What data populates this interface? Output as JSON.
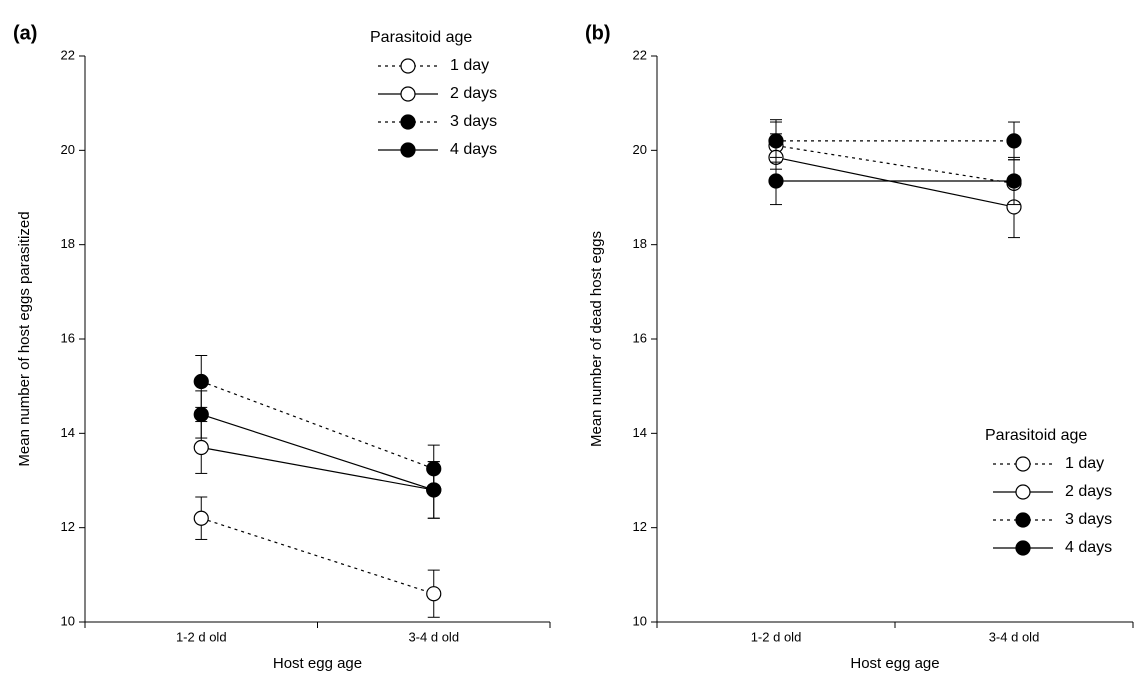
{
  "chart_data": [
    {
      "type": "line",
      "label": "(a)",
      "y_label": "Mean number of host eggs parasitized",
      "x_label": "Host egg age",
      "categories": [
        "1-2 d old",
        "3-4 d old"
      ],
      "ylim": [
        10,
        22
      ],
      "yticks": [
        10,
        12,
        14,
        16,
        18,
        20,
        22
      ],
      "legend_title": "Parasitoid age",
      "legend": "upper center",
      "series": [
        {
          "name": "1 day",
          "color": "#000000",
          "dash": "dotted",
          "marker_fill": "open",
          "values": [
            12.2,
            10.6
          ],
          "errors": [
            0.45,
            0.5
          ]
        },
        {
          "name": "2 days",
          "color": "#000000",
          "dash": "solid",
          "marker_fill": "open",
          "values": [
            13.7,
            12.8
          ],
          "errors": [
            0.55,
            0.6
          ]
        },
        {
          "name": "3 days",
          "color": "#000000",
          "dash": "dotted",
          "marker_fill": "filled",
          "values": [
            15.1,
            13.25
          ],
          "errors": [
            0.55,
            0.5
          ]
        },
        {
          "name": "4 days",
          "color": "#000000",
          "dash": "solid",
          "marker_fill": "filled",
          "values": [
            14.4,
            12.8
          ],
          "errors": [
            0.5,
            0.6
          ]
        }
      ]
    },
    {
      "type": "line",
      "label": "(b)",
      "y_label": "Mean number of dead host eggs",
      "x_label": "Host egg age",
      "categories": [
        "1-2 d old",
        "3-4 d old"
      ],
      "ylim": [
        10,
        22
      ],
      "yticks": [
        10,
        12,
        14,
        16,
        18,
        20,
        22
      ],
      "legend_title": "Parasitoid age",
      "legend": "lower right",
      "series": [
        {
          "name": "1 day",
          "color": "#000000",
          "dash": "dotted",
          "marker_fill": "open",
          "values": [
            20.1,
            19.3
          ],
          "errors": [
            0.5,
            0.5
          ]
        },
        {
          "name": "2 days",
          "color": "#000000",
          "dash": "solid",
          "marker_fill": "open",
          "values": [
            19.85,
            18.8
          ],
          "errors": [
            0.5,
            0.65
          ]
        },
        {
          "name": "3 days",
          "color": "#000000",
          "dash": "dotted",
          "marker_fill": "filled",
          "values": [
            20.2,
            20.2
          ],
          "errors": [
            0.45,
            0.4
          ]
        },
        {
          "name": "4 days",
          "color": "#000000",
          "dash": "solid",
          "marker_fill": "filled",
          "values": [
            19.35,
            19.35
          ],
          "errors": [
            0.5,
            0.5
          ]
        }
      ]
    }
  ]
}
